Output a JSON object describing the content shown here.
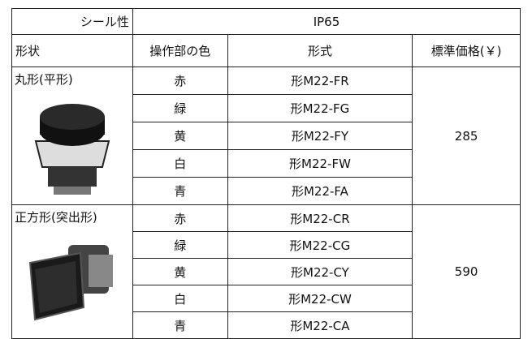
{
  "header": {
    "row1": [
      "シール性",
      "IP65"
    ],
    "row2": [
      "形状",
      "操作部の色",
      "形式",
      "標準価格(￥)"
    ]
  },
  "groups": [
    {
      "shape": "丸形(平形)",
      "price": 285,
      "rows": [
        [
          "赤",
          "形M22-FR"
        ],
        [
          "緑",
          "形M22-FG"
        ],
        [
          "黄",
          "形M22-FY"
        ],
        [
          "白",
          "形M22-FW"
        ],
        [
          "青",
          "形M22-FA"
        ]
      ]
    },
    {
      "shape": "正方形(突出形)",
      "price": 590,
      "rows": [
        [
          "赤",
          "形M22-CR"
        ],
        [
          "緑",
          "形M22-CG"
        ],
        [
          "黄",
          "形M22-CY"
        ],
        [
          "白",
          "形M22-CW"
        ],
        [
          "青",
          "形M22-CA"
        ]
      ]
    }
  ]
}
